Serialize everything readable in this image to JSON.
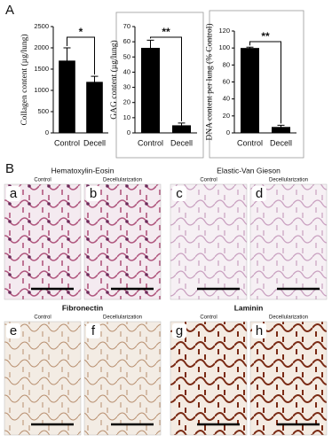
{
  "chart_data": [
    {
      "type": "bar",
      "y_label": "Collagen content (µg/lung)",
      "categories": [
        "Control",
        "Decell"
      ],
      "values": [
        1700,
        1200
      ],
      "errors": [
        300,
        130
      ],
      "ylim": [
        0,
        2500
      ],
      "yticks": [
        0,
        500,
        1000,
        1500,
        2000,
        2500
      ],
      "color": "#000000",
      "significance": "*"
    },
    {
      "type": "bar",
      "y_label": "GAG content (µg/lung)",
      "categories": [
        "Control",
        "Decell"
      ],
      "values": [
        56,
        5
      ],
      "errors": [
        5,
        1.5
      ],
      "ylim": [
        0,
        70
      ],
      "yticks": [
        0,
        10,
        20,
        30,
        40,
        50,
        60,
        70
      ],
      "color": "#000000",
      "significance": "**"
    },
    {
      "type": "bar",
      "y_label": "DNA content  per lung (% Control)",
      "categories": [
        "Control",
        "Decell"
      ],
      "values": [
        100,
        7
      ],
      "errors": [
        1,
        2
      ],
      "ylim": [
        0,
        120
      ],
      "yticks": [
        0,
        20,
        40,
        60,
        80,
        100,
        120
      ],
      "color": "#000000",
      "significance": "**"
    }
  ],
  "panel_labels": [
    "A",
    "B"
  ],
  "stains": [
    {
      "title": "Hematoxylin-Eosin",
      "images": [
        {
          "letter": "a",
          "label": "Control"
        },
        {
          "letter": "b",
          "label": "Decellularization"
        }
      ]
    },
    {
      "title": "Elastic-Van Gieson",
      "images": [
        {
          "letter": "c",
          "label": "Control"
        },
        {
          "letter": "d",
          "label": "Decellularization"
        }
      ]
    },
    {
      "title": "Fibronectin",
      "images": [
        {
          "letter": "e",
          "label": "Control"
        },
        {
          "letter": "f",
          "label": "Decellularization"
        }
      ]
    },
    {
      "title": "Laminin",
      "images": [
        {
          "letter": "g",
          "label": "Control"
        },
        {
          "letter": "h",
          "label": "Decellularization"
        }
      ]
    }
  ]
}
